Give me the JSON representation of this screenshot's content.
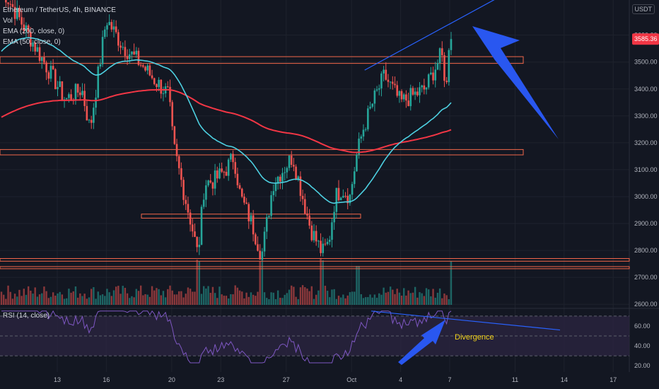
{
  "header": {
    "title": "Ethereum / TetherUS, 4h, BINANCE",
    "vol_label": "Vol",
    "ema200_label": "EMA (200, close, 0)",
    "ema50_label": "EMA (50, close, 0)",
    "rsi_label": "RSI (14, close)",
    "unit": "USDT"
  },
  "colors": {
    "background": "#131722",
    "up": "#26a69a",
    "down": "#ef5350",
    "ema50": "#4dd0e1",
    "ema200": "#f23645",
    "zone": "#f2674a",
    "trendline": "#2962ff",
    "arrow": "#2957f0",
    "rsi_line": "#7e57c2",
    "rsi_band": "#2a2440",
    "annotation": "#f2d31b"
  },
  "chart_data": [
    {
      "type": "candlestick",
      "title": "Ethereum / TetherUS, 4h, BINANCE",
      "price_axis_ticks": [
        2600,
        2700,
        2800,
        2900,
        3000,
        3100,
        3200,
        3300,
        3400,
        3500,
        3600
      ],
      "ylim": [
        2590,
        3720
      ],
      "current_price": 3585.36,
      "current_price_label": "3585.36",
      "x_ticks": [
        "13",
        "16",
        "20",
        "23",
        "27",
        "Oct",
        "4",
        "7",
        "11",
        "14",
        "17"
      ],
      "key_prices": {
        "start": 3520,
        "sep16_high": 3660,
        "sep20_drop_to": 3190,
        "sep21_low": 2780,
        "sep26_low": 2780,
        "sep28_bounce": 3150,
        "sep29_low": 2790,
        "oct2_rally": 3450,
        "oct7_high": 3625,
        "last_close": 3585.36
      },
      "indicators": [
        {
          "name": "EMA (200, close, 0)",
          "start": 3290,
          "min": 3195,
          "end": 3235
        },
        {
          "name": "EMA (50, close, 0)",
          "start": 3530,
          "min": 2980,
          "end": 3305
        }
      ],
      "horizontal_zones": [
        {
          "low": 3495,
          "high": 3520
        },
        {
          "low": 3155,
          "high": 3175
        },
        {
          "low": 2920,
          "high": 2935
        },
        {
          "low": 2760,
          "high": 2770
        },
        {
          "low": 2735,
          "high": 2740
        }
      ],
      "trendline": {
        "from": {
          "date": "Oct 2",
          "price": 3470
        },
        "to": {
          "date": "Oct 7",
          "price": 3640
        }
      },
      "volume": {
        "label": "Vol"
      }
    },
    {
      "type": "line",
      "title": "RSI (14, close)",
      "y_ticks": [
        20,
        40,
        60
      ],
      "ylim": [
        18,
        77
      ],
      "bands": [
        30,
        50,
        70
      ],
      "key_values": {
        "peak_oct2": 75,
        "divergence_high": 66,
        "min": 23,
        "last": 63
      },
      "trendline": {
        "from": {
          "date": "Oct 2",
          "rsi": 75
        },
        "to": {
          "date": "Oct 12",
          "rsi": 56
        }
      },
      "annotation": "Divergence"
    }
  ]
}
